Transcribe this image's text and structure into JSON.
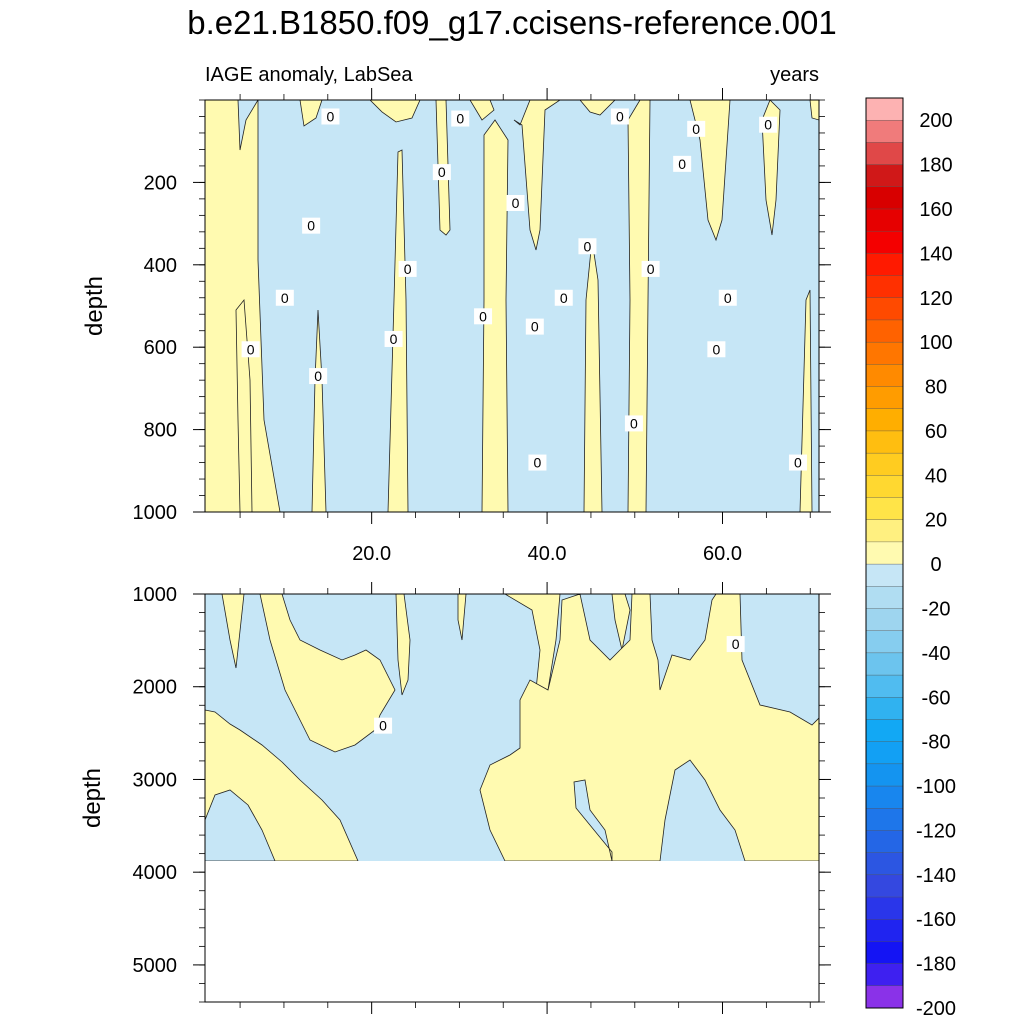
{
  "title": "b.e21.B1850.f09_g17.ccisens-reference.001",
  "chart_data": {
    "type": "contour",
    "subtitle_left": "IAGE anomaly, LabSea",
    "subtitle_right": "years",
    "xaxis": {
      "range": [
        1,
        71
      ],
      "ticks": [
        20,
        40,
        60
      ],
      "tick_labels": [
        "20.0",
        "40.0",
        "60.0"
      ]
    },
    "panels": [
      {
        "name": "upper",
        "ylabel": "depth",
        "ylim": [
          0,
          1000
        ],
        "reversed": true,
        "y_ticks": [
          200,
          400,
          600,
          800,
          1000
        ],
        "y_tick_labels": [
          "200",
          "400",
          "600",
          "800",
          "1000"
        ],
        "contour_labels": [
          {
            "x": 15.3,
            "y": 40,
            "text": "0"
          },
          {
            "x": 30.1,
            "y": 45,
            "text": "0"
          },
          {
            "x": 48.3,
            "y": 40,
            "text": "0"
          },
          {
            "x": 57.0,
            "y": 70,
            "text": "0"
          },
          {
            "x": 65.2,
            "y": 60,
            "text": "0"
          },
          {
            "x": 55.4,
            "y": 155,
            "text": "0"
          },
          {
            "x": 28.0,
            "y": 175,
            "text": "0"
          },
          {
            "x": 36.4,
            "y": 250,
            "text": "0"
          },
          {
            "x": 13.1,
            "y": 305,
            "text": "0"
          },
          {
            "x": 44.6,
            "y": 355,
            "text": "0"
          },
          {
            "x": 24.1,
            "y": 410,
            "text": "0"
          },
          {
            "x": 51.8,
            "y": 410,
            "text": "0"
          },
          {
            "x": 10.1,
            "y": 480,
            "text": "0"
          },
          {
            "x": 41.9,
            "y": 480,
            "text": "0"
          },
          {
            "x": 60.6,
            "y": 480,
            "text": "0"
          },
          {
            "x": 32.7,
            "y": 525,
            "text": "0"
          },
          {
            "x": 38.6,
            "y": 550,
            "text": "0"
          },
          {
            "x": 22.5,
            "y": 580,
            "text": "0"
          },
          {
            "x": 6.2,
            "y": 605,
            "text": "0"
          },
          {
            "x": 59.3,
            "y": 605,
            "text": "0"
          },
          {
            "x": 13.9,
            "y": 670,
            "text": "0"
          },
          {
            "x": 49.9,
            "y": 785,
            "text": "0"
          },
          {
            "x": 38.9,
            "y": 880,
            "text": "0"
          },
          {
            "x": 68.6,
            "y": 880,
            "text": "0"
          }
        ]
      },
      {
        "name": "lower",
        "ylabel": "depth",
        "ylim": [
          1000,
          5400
        ],
        "reversed": true,
        "y_ticks": [
          1000,
          2000,
          3000,
          4000,
          5000
        ],
        "y_tick_labels": [
          "1000",
          "2000",
          "3000",
          "4000",
          "5000"
        ],
        "contour_labels": [
          {
            "x": 61.5,
            "y": 1540,
            "text": "0"
          },
          {
            "x": 21.3,
            "y": 2420,
            "text": "0"
          }
        ]
      }
    ],
    "colorbar": {
      "orientation": "vertical",
      "levels": [
        -200,
        -190,
        -180,
        -170,
        -160,
        -150,
        -140,
        -130,
        -120,
        -110,
        -100,
        -90,
        -80,
        -70,
        -60,
        -50,
        -40,
        -30,
        -20,
        -10,
        0,
        10,
        20,
        30,
        40,
        50,
        60,
        70,
        80,
        90,
        100,
        110,
        120,
        130,
        140,
        150,
        160,
        170,
        180,
        190,
        200
      ],
      "label_values": [
        "200",
        "180",
        "160",
        "140",
        "120",
        "100",
        "80",
        "60",
        "40",
        "20",
        "0",
        "-20",
        "-40",
        "-60",
        "-80",
        "-100",
        "-120",
        "-140",
        "-160",
        "-180",
        "-200"
      ],
      "colors_top_to_bottom": [
        "#fdb2b2",
        "#f07b7b",
        "#e04848",
        "#d01818",
        "#d80000",
        "#e60000",
        "#f40000",
        "#ff1a00",
        "#ff3000",
        "#ff4a00",
        "#ff6200",
        "#ff7600",
        "#ff8a00",
        "#ff9c00",
        "#ffae00",
        "#ffbe10",
        "#ffcc20",
        "#ffd830",
        "#ffe448",
        "#fff080",
        "#fffab0",
        "#c6e6f6",
        "#b0ddf2",
        "#9ed5ef",
        "#86cdef",
        "#6cc4ee",
        "#50bcf0",
        "#30b2f0",
        "#12a8f4",
        "#12a0f4",
        "#1494f0",
        "#1886ee",
        "#1e76ea",
        "#2466e6",
        "#2c56e2",
        "#3448e0",
        "#2a36ea",
        "#2024f0",
        "#1414f4",
        "#3e20f0",
        "#8a32e8"
      ]
    },
    "fill_colors": {
      "positive": "#fffab0",
      "negative": "#c6e6f6",
      "line": "#222222"
    }
  }
}
